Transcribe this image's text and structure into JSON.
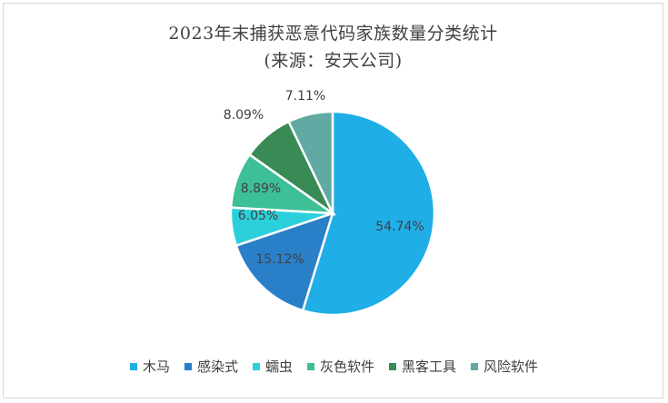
{
  "chart_data": {
    "type": "pie",
    "title": "2023年末捕获恶意代码家族数量分类统计",
    "subtitle": "(来源：安天公司)",
    "categories": [
      "木马",
      "感染式",
      "蠕虫",
      "灰色软件",
      "黑客工具",
      "风险软件"
    ],
    "values": [
      54.74,
      15.12,
      6.05,
      8.89,
      8.09,
      7.11
    ],
    "data_labels": [
      "54.74%",
      "15.12%",
      "6.05%",
      "8.89%",
      "8.09%",
      "7.11%"
    ],
    "colors": [
      "#1FAEE6",
      "#2A80C8",
      "#2BD0DA",
      "#3DBF97",
      "#3A8A55",
      "#62A9A3"
    ],
    "legend_position": "bottom"
  }
}
